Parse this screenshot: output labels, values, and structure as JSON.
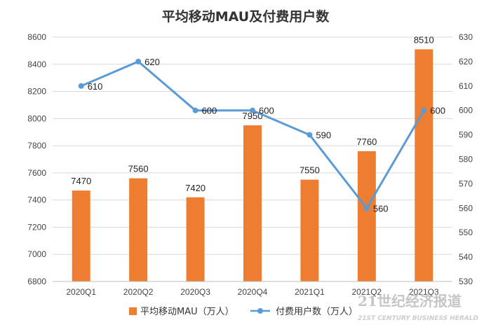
{
  "chart_data": {
    "type": "bar+line",
    "title": "平均移动MAU及付费用户数",
    "categories": [
      "2020Q1",
      "2020Q2",
      "2020Q3",
      "2020Q4",
      "2021Q1",
      "2021Q2",
      "2021Q3"
    ],
    "series": [
      {
        "name": "平均移动MAU（万人）",
        "type": "bar",
        "axis": "left",
        "color": "#ED7D31",
        "values": [
          7470,
          7560,
          7420,
          7950,
          7550,
          7760,
          8510
        ]
      },
      {
        "name": "付费用户数（万人）",
        "type": "line",
        "axis": "right",
        "color": "#5B9BD5",
        "values": [
          610,
          620,
          600,
          600,
          590,
          560,
          600
        ]
      }
    ],
    "left_axis": {
      "min": 6800,
      "max": 8600,
      "step": 200,
      "ticks": [
        "6800",
        "7000",
        "7200",
        "7400",
        "7600",
        "7800",
        "8000",
        "8200",
        "8400",
        "8600"
      ]
    },
    "right_axis": {
      "min": 530,
      "max": 630,
      "step": 10,
      "ticks": [
        "530",
        "540",
        "550",
        "560",
        "570",
        "580",
        "590",
        "600",
        "610",
        "620",
        "630"
      ]
    },
    "grid": true,
    "legend_position": "bottom-center"
  },
  "watermark": {
    "line1": "21世纪经济报道",
    "line2": "21ST CENTURY BUSINESS HERALD"
  }
}
